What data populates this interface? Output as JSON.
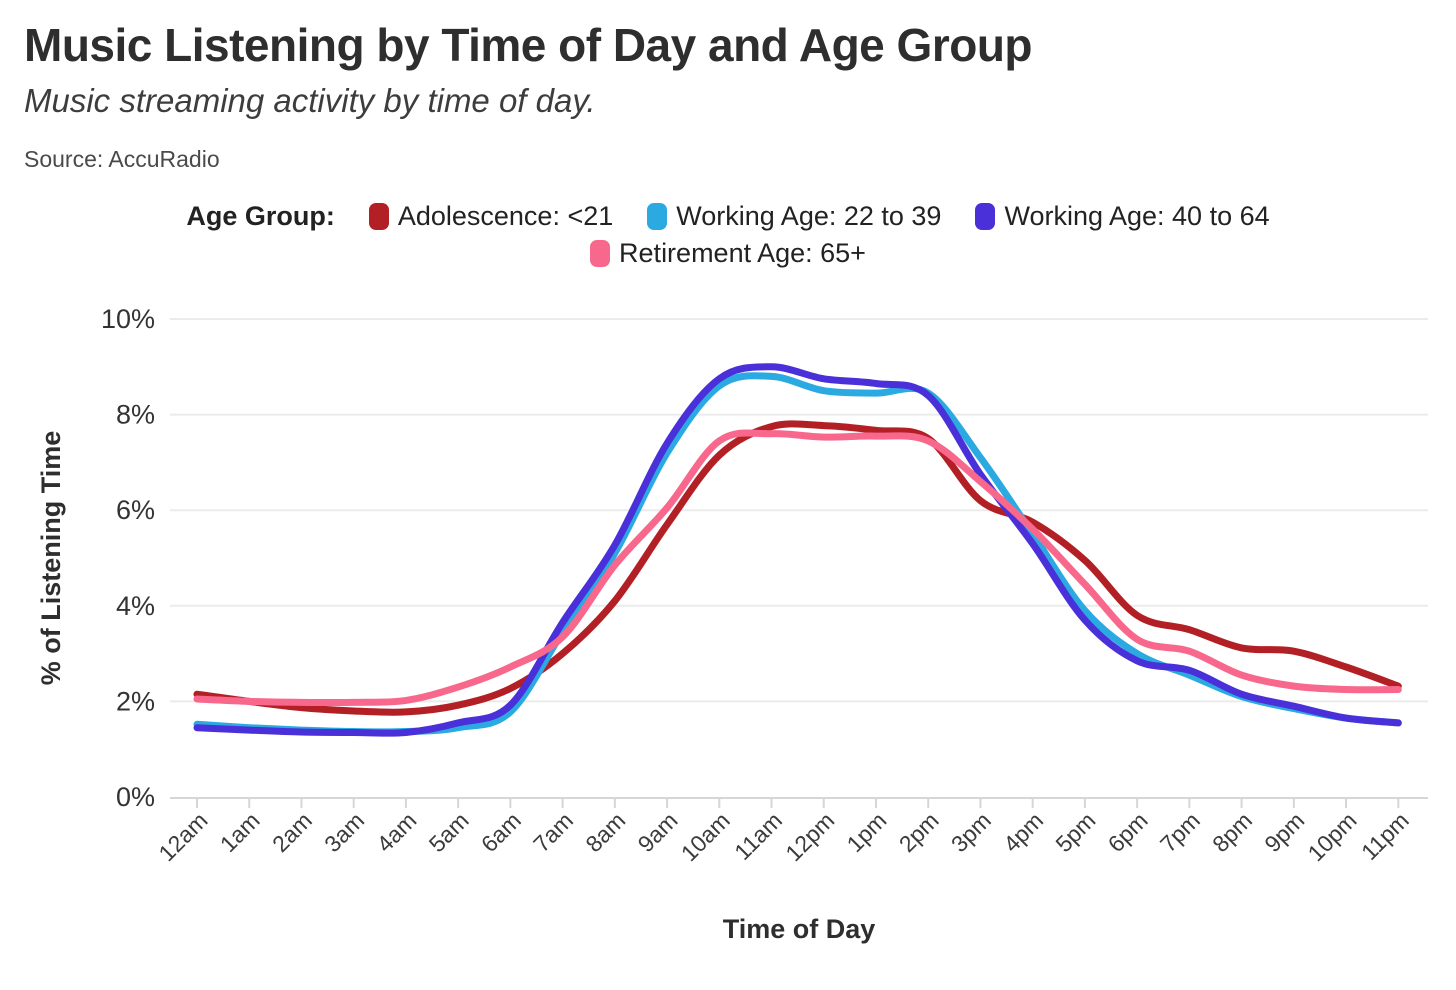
{
  "header": {
    "title": "Music Listening by Time of Day and Age Group",
    "subtitle": "Music streaming activity by time of day.",
    "source": "Source: AccuRadio"
  },
  "legend": {
    "label": "Age Group:"
  },
  "chart_data": {
    "type": "line",
    "title": "Music Listening by Time of Day and Age Group",
    "xlabel": "Time of Day",
    "ylabel": "% of Listening Time",
    "x": [
      "12am",
      "1am",
      "2am",
      "3am",
      "4am",
      "5am",
      "6am",
      "7am",
      "8am",
      "9am",
      "10am",
      "11am",
      "12pm",
      "1pm",
      "2pm",
      "3pm",
      "4pm",
      "5pm",
      "6pm",
      "7pm",
      "8pm",
      "9pm",
      "10pm",
      "11pm"
    ],
    "ylim": [
      0,
      10
    ],
    "yticks": [
      0,
      2,
      4,
      6,
      8,
      10
    ],
    "ytick_suffix": "%",
    "grid": true,
    "legend_position": "top",
    "series": [
      {
        "name": "Adolescence: <21",
        "color": "#B22026",
        "values": [
          2.15,
          2.0,
          1.87,
          1.8,
          1.78,
          1.92,
          2.27,
          3.0,
          4.1,
          5.7,
          7.15,
          7.75,
          7.77,
          7.67,
          7.5,
          6.2,
          5.75,
          4.95,
          3.8,
          3.5,
          3.12,
          3.05,
          2.72,
          2.32
        ]
      },
      {
        "name": "Working Age: 22 to 39",
        "color": "#2BAAE2",
        "values": [
          1.52,
          1.45,
          1.4,
          1.37,
          1.37,
          1.45,
          1.78,
          3.45,
          5.1,
          7.2,
          8.6,
          8.8,
          8.5,
          8.45,
          8.45,
          7.1,
          5.5,
          3.9,
          3.0,
          2.55,
          2.1,
          1.85,
          1.65,
          1.55
        ]
      },
      {
        "name": "Working Age: 40 to 64",
        "color": "#4930D8",
        "values": [
          1.45,
          1.4,
          1.36,
          1.35,
          1.35,
          1.55,
          1.92,
          3.65,
          5.27,
          7.4,
          8.75,
          9.0,
          8.75,
          8.65,
          8.4,
          6.75,
          5.3,
          3.7,
          2.85,
          2.65,
          2.15,
          1.9,
          1.65,
          1.55
        ]
      },
      {
        "name": "Retirement Age: 65+",
        "color": "#F8688C",
        "values": [
          2.05,
          2.0,
          1.98,
          1.98,
          2.02,
          2.3,
          2.72,
          3.35,
          4.85,
          6.05,
          7.45,
          7.6,
          7.53,
          7.55,
          7.45,
          6.6,
          5.6,
          4.45,
          3.3,
          3.05,
          2.55,
          2.32,
          2.25,
          2.25
        ]
      }
    ]
  }
}
